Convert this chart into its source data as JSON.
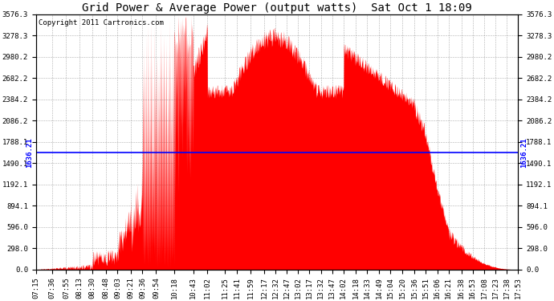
{
  "title": "Grid Power & Average Power (output watts)  Sat Oct 1 18:09",
  "copyright": "Copyright 2011 Cartronics.com",
  "average_power": 1636.21,
  "ymax": 3576.3,
  "yticks": [
    0.0,
    298.0,
    596.0,
    894.1,
    1192.1,
    1490.1,
    1788.1,
    2086.2,
    2384.2,
    2682.2,
    2980.2,
    3278.3,
    3576.3
  ],
  "background_color": "#ffffff",
  "fill_color": "#ff0000",
  "avg_line_color": "#0000ff",
  "grid_color": "#999999",
  "title_color": "#000000",
  "xtick_labels": [
    "07:15",
    "07:36",
    "07:55",
    "08:13",
    "08:30",
    "08:48",
    "09:03",
    "09:21",
    "09:36",
    "09:54",
    "10:18",
    "10:43",
    "11:02",
    "11:25",
    "11:41",
    "11:59",
    "12:17",
    "12:32",
    "12:47",
    "13:02",
    "13:17",
    "13:32",
    "13:47",
    "14:02",
    "14:18",
    "14:33",
    "14:49",
    "15:04",
    "15:20",
    "15:36",
    "15:51",
    "16:06",
    "16:21",
    "16:38",
    "16:53",
    "17:08",
    "17:23",
    "17:38",
    "17:53"
  ],
  "title_fontsize": 10,
  "tick_fontsize": 6.5,
  "copyright_fontsize": 6.5
}
